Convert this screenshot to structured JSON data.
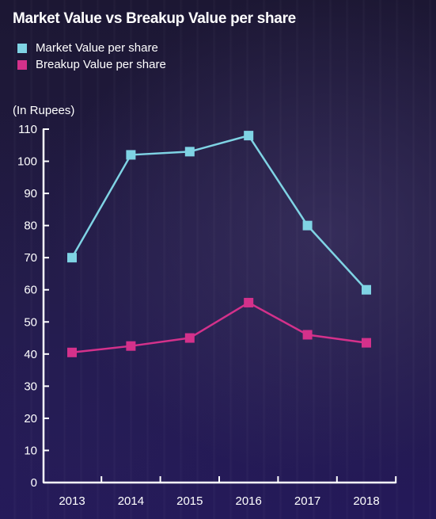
{
  "chart_data": {
    "type": "line",
    "title": "Market Value vs Breakup Value per share",
    "ylabel": "(In Rupees)",
    "xlabel": "",
    "categories": [
      "2013",
      "2014",
      "2015",
      "2016",
      "2017",
      "2018"
    ],
    "ylim": [
      0,
      110
    ],
    "yticks": [
      "0",
      "10",
      "20",
      "30",
      "40",
      "50",
      "60",
      "70",
      "80",
      "90",
      "100",
      "110"
    ],
    "grid": false,
    "legend_position": "top-left",
    "series": [
      {
        "name": "Market Value per share",
        "color": "#7fd3e4",
        "values": [
          70,
          102,
          103,
          108,
          80,
          60
        ]
      },
      {
        "name": "Breakup Value per share",
        "color": "#d4318b",
        "values": [
          40.5,
          42.5,
          45,
          56,
          46,
          43.5
        ]
      }
    ]
  }
}
